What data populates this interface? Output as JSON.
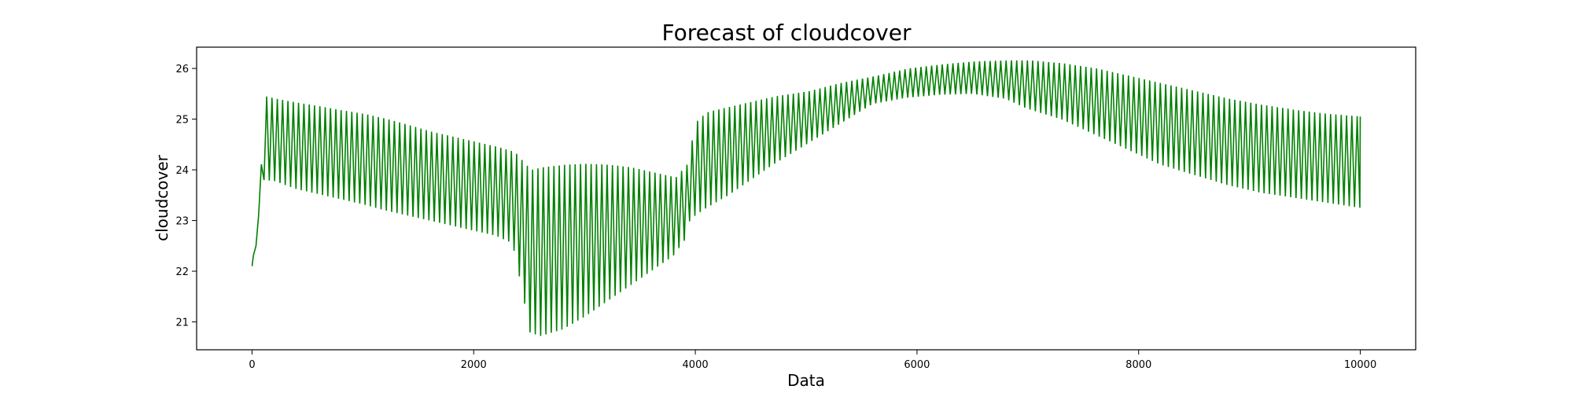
{
  "chart_data": {
    "type": "line",
    "title": "Forecast of cloudcover",
    "xlabel": "Data",
    "ylabel": "cloudcover",
    "xlim": [
      -500,
      10500
    ],
    "ylim": [
      20.45,
      26.42
    ],
    "x_ticks": [
      0,
      2000,
      4000,
      6000,
      8000,
      10000
    ],
    "y_ticks": [
      21,
      22,
      23,
      24,
      25,
      26
    ],
    "grid": false,
    "legend": "none",
    "series_color": "#008000",
    "oscillation_period": 48,
    "oscillation_note": "",
    "series": [
      {
        "x": [
          0,
          100,
          200,
          400,
          600,
          800,
          1000,
          1200,
          1400,
          1600,
          1800,
          2000,
          2200,
          2350,
          2450,
          2500,
          2600,
          2800,
          3000,
          3200,
          3400,
          3600,
          3800,
          3900,
          3950,
          4000,
          4100,
          4300,
          4500,
          4700,
          5000,
          5300,
          5600,
          5900,
          6200,
          6500,
          6800,
          7000,
          7300,
          7600,
          7900,
          8200,
          8500,
          8800,
          9100,
          9400,
          9700,
          10000
        ],
        "upper": [
          22.1,
          25.45,
          25.4,
          25.32,
          25.25,
          25.17,
          25.1,
          25.0,
          24.88,
          24.75,
          24.65,
          24.55,
          24.45,
          24.35,
          24.1,
          24.0,
          24.05,
          24.1,
          24.12,
          24.1,
          24.05,
          23.95,
          23.85,
          24.1,
          24.6,
          25.0,
          25.15,
          25.25,
          25.35,
          25.45,
          25.55,
          25.72,
          25.85,
          26.0,
          26.08,
          26.14,
          26.16,
          26.16,
          26.1,
          26.0,
          25.85,
          25.7,
          25.55,
          25.4,
          25.28,
          25.18,
          25.1,
          25.05
        ],
        "lower": [
          22.1,
          23.8,
          23.78,
          23.62,
          23.52,
          23.42,
          23.32,
          23.2,
          23.1,
          23.0,
          22.9,
          22.8,
          22.7,
          22.55,
          21.5,
          20.8,
          20.72,
          20.85,
          21.1,
          21.4,
          21.7,
          22.0,
          22.3,
          22.6,
          23.0,
          23.1,
          23.25,
          23.5,
          23.8,
          24.1,
          24.5,
          24.9,
          25.3,
          25.42,
          25.48,
          25.5,
          25.4,
          25.2,
          25.0,
          24.7,
          24.4,
          24.1,
          23.9,
          23.7,
          23.55,
          23.45,
          23.35,
          23.25
        ]
      }
    ]
  }
}
